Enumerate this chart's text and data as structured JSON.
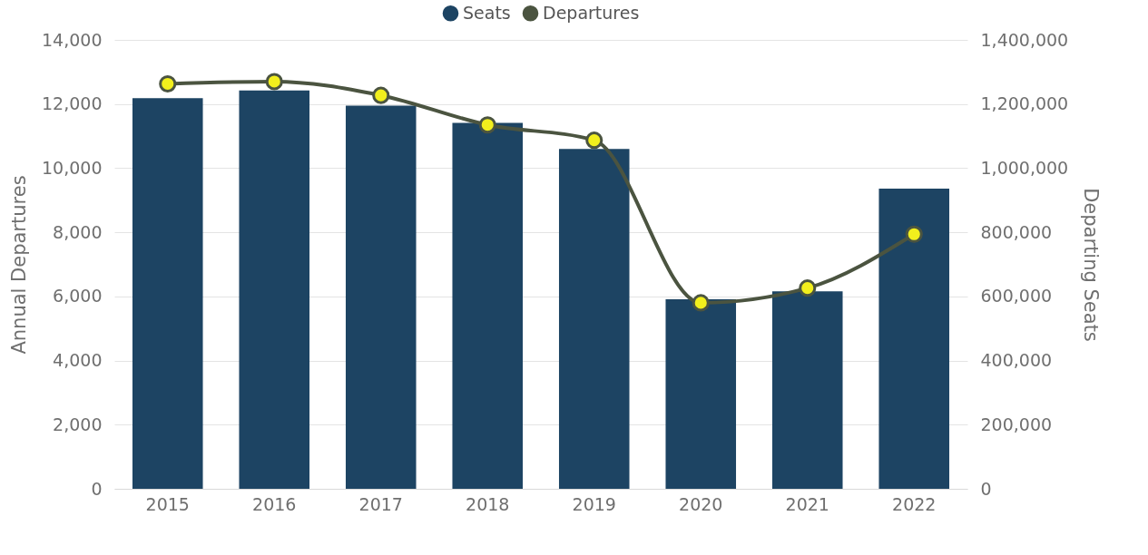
{
  "chart_data": {
    "type": "bar",
    "categories": [
      "2015",
      "2016",
      "2017",
      "2018",
      "2019",
      "2020",
      "2021",
      "2022"
    ],
    "series": [
      {
        "name": "Seats",
        "axis": "y2",
        "color": "#1d4463",
        "values": [
          1218000,
          1242000,
          1195000,
          1141000,
          1060000,
          591000,
          616000,
          936000
        ]
      },
      {
        "name": "Departures",
        "type": "line",
        "color": "#4b5440",
        "values": [
          12630,
          12700,
          12270,
          11350,
          10870,
          5800,
          6260,
          7940
        ]
      }
    ],
    "ylabel": "Annual Departures",
    "y2label": "Departing Seats",
    "ylim": [
      0,
      14000
    ],
    "yticks": [
      0,
      {
        "value": 2000,
        "label": "2,000"
      },
      {
        "value": 4000,
        "label": "4,000"
      },
      {
        "value": 6000,
        "label": "6,000"
      },
      {
        "value": 8000,
        "label": "8,000"
      },
      {
        "value": 10000,
        "label": "10,000"
      },
      {
        "value": 12000,
        "label": "12,000"
      },
      {
        "value": 14000,
        "label": "14,000"
      }
    ],
    "y2lim": [
      0,
      1400000
    ],
    "y2ticks": [
      0,
      {
        "value": 200000,
        "label": "200,000"
      },
      {
        "value": 400000,
        "label": "400,000"
      },
      {
        "value": 600000,
        "label": "600,000"
      },
      {
        "value": 800000,
        "label": "800,000"
      },
      {
        "value": 1000000,
        "label": "1,000,000"
      },
      {
        "value": 1200000,
        "label": "1,200,000"
      },
      {
        "value": 1400000,
        "label": "1,400,000"
      }
    ],
    "grid": "y",
    "legend": "top",
    "marker": "circle"
  }
}
